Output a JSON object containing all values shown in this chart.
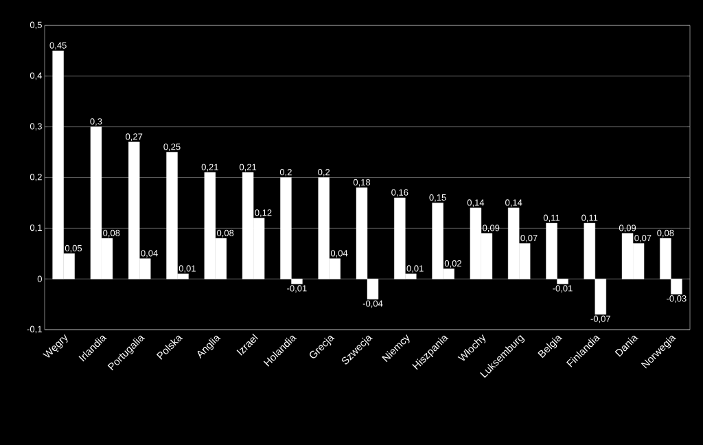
{
  "chart_data": {
    "type": "bar",
    "categories": [
      "Węgry",
      "Irlandia",
      "Portugalia",
      "Polska",
      "Anglia",
      "Izrael",
      "Holandia",
      "Grecja",
      "Szwecja",
      "Niemcy",
      "Hiszpania",
      "Włochy",
      "Luksemburg",
      "Belgia",
      "Finlandia",
      "Dania",
      "Norwegia"
    ],
    "series": [
      {
        "color": "#ffffff",
        "values": [
          0.45,
          0.3,
          0.27,
          0.25,
          0.21,
          0.21,
          0.2,
          0.2,
          0.18,
          0.16,
          0.15,
          0.14,
          0.14,
          0.11,
          0.11,
          0.09,
          0.08
        ],
        "value_labels": [
          "0,45",
          "0,3",
          "0,27",
          "0,25",
          "0,21",
          "0,21",
          "0,2",
          "0,2",
          "0,18",
          "0,16",
          "0,15",
          "0,14",
          "0,14",
          "0,11",
          "0,11",
          "0,09",
          "0,08"
        ]
      },
      {
        "color": "#ffffff",
        "values": [
          0.05,
          0.08,
          0.04,
          0.01,
          0.08,
          0.12,
          -0.01,
          0.04,
          -0.04,
          0.01,
          0.02,
          0.09,
          0.07,
          -0.01,
          -0.07,
          0.07,
          -0.03
        ],
        "value_labels": [
          "0,05",
          "0,08",
          "0,04",
          "0,01",
          "0,08",
          "0,12",
          "-0,01",
          "0,04",
          "-0,04",
          "0,01",
          "0,02",
          "0,09",
          "0,07",
          "-0,01",
          "-0,07",
          "0,07",
          "-0,03"
        ]
      }
    ],
    "ylim": [
      -0.1,
      0.5
    ],
    "yticks": [
      {
        "value": -0.1,
        "label": "-0,1"
      },
      {
        "value": 0,
        "label": "0"
      },
      {
        "value": 0.1,
        "label": "0,1"
      },
      {
        "value": 0.2,
        "label": "0,2"
      },
      {
        "value": 0.3,
        "label": "0,3"
      },
      {
        "value": 0.4,
        "label": "0,4"
      },
      {
        "value": 0.5,
        "label": "0,5"
      }
    ],
    "grid": "y"
  }
}
